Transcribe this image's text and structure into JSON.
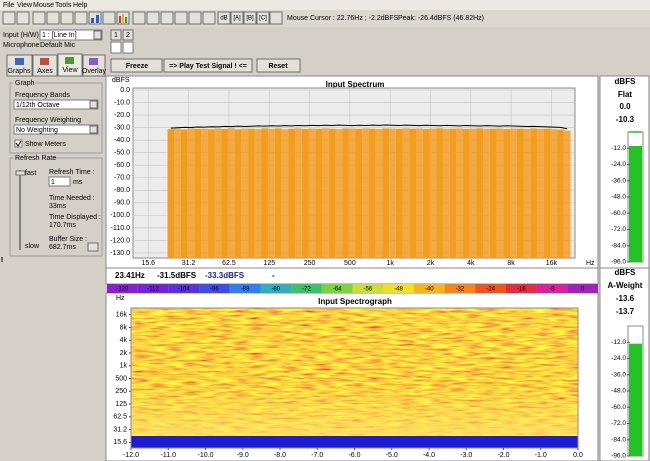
{
  "menu": [
    "File",
    "View",
    "Mouse",
    "Tools",
    "Help"
  ],
  "toolbar": {
    "buttons": [
      "dB",
      "[A]",
      "[B]",
      "[C]"
    ],
    "cursor": "Mouse Cursor : 22.76Hz ; -2.2dBFS",
    "peak": "Peak: -26.4dBFS (46.82Hz)"
  },
  "input": {
    "label": "Input (H/W)",
    "value": "1 : [Line In]",
    "mic_label": "Microphone",
    "mic_value": "Default Mic",
    "channels": [
      "1",
      "2"
    ]
  },
  "tabs": [
    "Graphs",
    "Axes",
    "View",
    "Overlay"
  ],
  "graph_group": {
    "title": "Graph",
    "bands_label": "Frequency Bands",
    "bands_value": "1/12th Octave",
    "weighting_label": "Frequency Weighting",
    "weighting_value": "No Weighting",
    "show_meters": "Show Meters"
  },
  "refresh_group": {
    "title": "Refresh Rate",
    "fast": "fast",
    "slow": "slow",
    "time_label": "Refresh Time :",
    "time_value": 1,
    "time_unit": "ms",
    "needed_label": "Time Needed :",
    "needed_value": "33ms",
    "displayed_label": "Time Displayed :",
    "displayed_value": "170.7ms",
    "buffer_label": "Buffer Size :",
    "buffer_value": "682.7ms"
  },
  "buttons": [
    "Freeze",
    "=> Play Test Signal ! <=",
    "Reset"
  ],
  "readout": [
    "23.41Hz",
    "-31.5dBFS",
    "-33.3dBFS",
    "-"
  ],
  "chart_data": [
    {
      "type": "bar",
      "title": "Input Spectrum",
      "ylabel": "dBFS",
      "xlabel": "Hz",
      "xscale": "log",
      "grid": true,
      "x": [
        23,
        25.8,
        29,
        32.5,
        36.5,
        41,
        46,
        51.6,
        58,
        65,
        73,
        82,
        92,
        103,
        116,
        130,
        146,
        164,
        184,
        206,
        232,
        260,
        292,
        328,
        368,
        413,
        464,
        520,
        584,
        656,
        736,
        826,
        927,
        1041,
        1168,
        1312,
        1472,
        1652,
        1855,
        2082,
        2337,
        2623,
        2944,
        3305,
        3710,
        4164,
        4674,
        5246,
        5888,
        6609,
        7419,
        8327,
        9347,
        10492,
        11776,
        13218,
        14837,
        16654,
        18693,
        20983
      ],
      "series": [
        {
          "type": "bar",
          "color": "#f39c1e",
          "values": [
            -31.2,
            -30.8,
            -31.5,
            -30.6,
            -31.0,
            -30.9,
            -31.3,
            -30.7,
            -31.1,
            -30.5,
            -31.4,
            -30.8,
            -30.9,
            -31.2,
            -30.6,
            -31.0,
            -30.7,
            -31.3,
            -30.9,
            -30.6,
            -31.1,
            -30.8,
            -31.0,
            -30.5,
            -30.9,
            -31.2,
            -30.7,
            -30.8,
            -31.0,
            -30.6,
            -30.9,
            -31.1,
            -30.7,
            -30.8,
            -31.0,
            -30.6,
            -30.9,
            -30.7,
            -31.2,
            -30.8,
            -30.6,
            -31.0,
            -30.9,
            -30.7,
            -31.1,
            -30.8,
            -30.6,
            -31.0,
            -30.9,
            -30.7,
            -31.2,
            -30.8,
            -30.9,
            -31.1,
            -30.7,
            -31.0,
            -30.9,
            -31.3,
            -31.5,
            -32.4
          ]
        },
        {
          "type": "line",
          "color": "#000000",
          "values": [
            -30.4,
            -30.1,
            -29.8,
            -29.9,
            -29.5,
            -29.6,
            -29.3,
            -29.4,
            -29.0,
            -29.2,
            -28.8,
            -29.1,
            -28.9,
            -28.6,
            -28.8,
            -28.5,
            -28.7,
            -28.4,
            -28.6,
            -28.3,
            -28.5,
            -28.2,
            -28.4,
            -28.1,
            -28.3,
            -28.0,
            -28.2,
            -28.4,
            -28.1,
            -28.3,
            -28.0,
            -28.2,
            -27.9,
            -28.1,
            -28.3,
            -28.0,
            -28.2,
            -28.4,
            -28.1,
            -28.3,
            -28.5,
            -28.2,
            -28.4,
            -28.6,
            -28.3,
            -28.5,
            -28.7,
            -28.4,
            -28.6,
            -28.8,
            -28.5,
            -28.7,
            -28.9,
            -29.1,
            -29.0,
            -29.2,
            -29.4,
            -29.6,
            -29.8,
            -30.9
          ]
        }
      ],
      "xlim": [
        12,
        24000
      ],
      "ylim": [
        -134,
        0
      ],
      "xticks": [
        15.6,
        31.2,
        62.5,
        125,
        250,
        500,
        {
          "value": 1000,
          "label": "1k"
        },
        {
          "value": 2000,
          "label": "2k"
        },
        {
          "value": 4000,
          "label": "4k"
        },
        {
          "value": 8000,
          "label": "8k"
        },
        {
          "value": 16000,
          "label": "16k"
        }
      ],
      "yticks": [
        {
          "value": 0,
          "label": "0.0"
        },
        {
          "value": -10,
          "label": "-10.0"
        },
        {
          "value": -20,
          "label": "-20.0"
        },
        {
          "value": -30,
          "label": "-30.0"
        },
        {
          "value": -40,
          "label": "-40.0"
        },
        {
          "value": -50,
          "label": "-50.0"
        },
        {
          "value": -60,
          "label": "-60.0"
        },
        {
          "value": -70,
          "label": "-70.0"
        },
        {
          "value": -80,
          "label": "-80.0"
        },
        {
          "value": -90,
          "label": "-90.0"
        },
        {
          "value": -100,
          "label": "-100.0"
        },
        {
          "value": -110,
          "label": "-110.0"
        },
        {
          "value": -120,
          "label": "-120.0"
        },
        {
          "value": -130,
          "label": "-130.0"
        }
      ]
    },
    {
      "type": "spectrogram",
      "title": "Input Spectrograph",
      "ylabel": "Hz",
      "yscale": "log",
      "ylim": [
        11.5,
        23000
      ],
      "yticks": [
        {
          "value": 16000,
          "label": "16k"
        },
        {
          "value": 8000,
          "label": "8k"
        },
        {
          "value": 4000,
          "label": "4k"
        },
        {
          "value": 2000,
          "label": "2k"
        },
        {
          "value": 1000,
          "label": "1k"
        },
        500,
        250,
        125,
        62.5,
        31.2,
        15.6
      ],
      "xlim": [
        -12,
        0
      ],
      "xticks": [
        {
          "value": -12,
          "label": "-12.0"
        },
        {
          "value": -11,
          "label": "-11.0"
        },
        {
          "value": -10,
          "label": "-10.0"
        },
        {
          "value": -9,
          "label": "-9.0"
        },
        {
          "value": -8,
          "label": "-8.0"
        },
        {
          "value": -7,
          "label": "-7.0"
        },
        {
          "value": -6,
          "label": "-6.0"
        },
        {
          "value": -5,
          "label": "-5.0"
        },
        {
          "value": -4,
          "label": "-4.0"
        },
        {
          "value": -3,
          "label": "-3.0"
        },
        {
          "value": -2,
          "label": "-2.0"
        },
        {
          "value": -1,
          "label": "-1.0"
        },
        {
          "value": 0,
          "label": "0.0"
        }
      ],
      "colorbar": {
        "ticks": [
          -120,
          -112,
          -104,
          -96,
          -88,
          -80,
          -72,
          -64,
          -56,
          -48,
          -40,
          -32,
          -24,
          -16,
          -8,
          0
        ],
        "colors": [
          "#8a1fd0",
          "#7424d8",
          "#5a30e0",
          "#3f4de8",
          "#2f7ff0",
          "#2fb0c0",
          "#39c26a",
          "#7ad43a",
          "#c8e030",
          "#f0e020",
          "#f8b418",
          "#f88418",
          "#f05418",
          "#e82a40",
          "#d820a0",
          "#a020c0"
        ]
      }
    },
    {
      "type": "meter",
      "unit": "dBFS",
      "title": "Flat",
      "values": [
        0,
        -10.3
      ],
      "value_labels": [
        "0.0",
        "-10.3"
      ],
      "color": "#22c322",
      "ylim": [
        -96,
        0
      ],
      "yticks": [
        {
          "value": -12,
          "label": "-12.0"
        },
        {
          "value": -24,
          "label": "-24.0"
        },
        {
          "value": -36,
          "label": "-36.0"
        },
        {
          "value": -48,
          "label": "-48.0"
        },
        {
          "value": -60,
          "label": "-60.0"
        },
        {
          "value": -72,
          "label": "-72.0"
        },
        {
          "value": -84,
          "label": "-84.0"
        },
        {
          "value": -96,
          "label": "-96.0"
        }
      ]
    },
    {
      "type": "meter",
      "unit": "dBFS",
      "title": "A-Weight",
      "values": [
        -13.6,
        -13.7
      ],
      "value_labels": [
        "-13.6",
        "-13.7"
      ],
      "color": "#22c322",
      "ylim": [
        -96,
        0
      ],
      "yticks": [
        {
          "value": -12,
          "label": "-12.0"
        },
        {
          "value": -24,
          "label": "-24.0"
        },
        {
          "value": -36,
          "label": "-36.0"
        },
        {
          "value": -48,
          "label": "-48.0"
        },
        {
          "value": -60,
          "label": "-60.0"
        },
        {
          "value": -72,
          "label": "-72.0"
        },
        {
          "value": -84,
          "label": "-84.0"
        },
        {
          "value": -96,
          "label": "-96.0"
        }
      ]
    }
  ]
}
